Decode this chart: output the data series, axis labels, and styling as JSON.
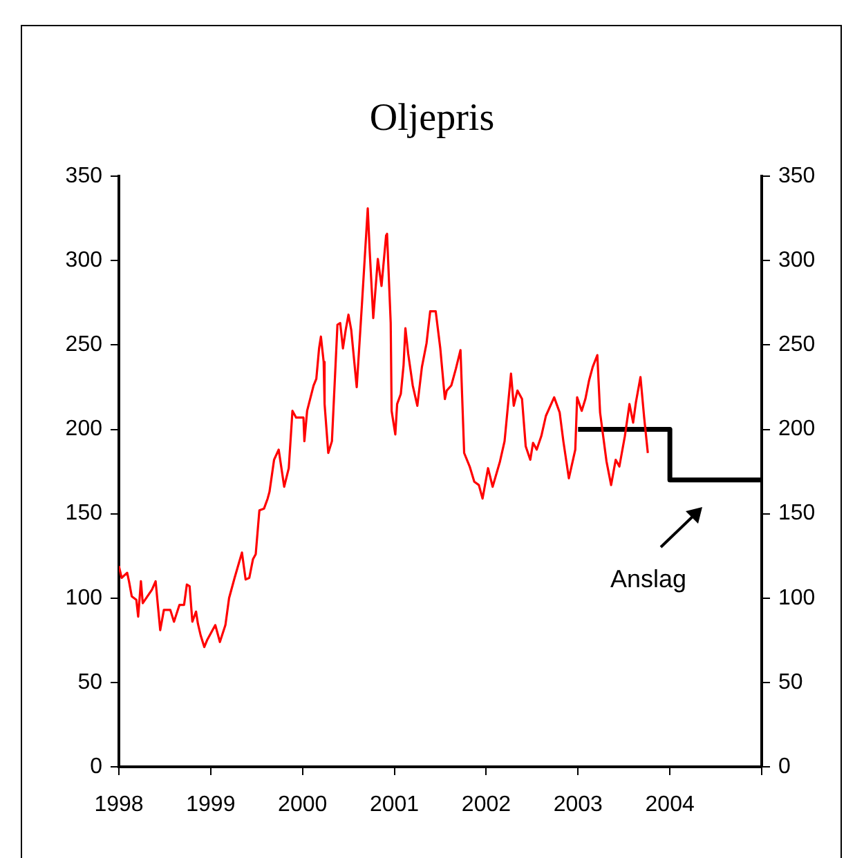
{
  "chart_data": {
    "type": "line",
    "title": "Oljepris",
    "xlim": [
      1998,
      2005
    ],
    "xticks": [
      {
        "value": 1998,
        "label": "1998"
      },
      {
        "value": 1999,
        "label": "1999"
      },
      {
        "value": 2000,
        "label": "2000"
      },
      {
        "value": 2001,
        "label": "2001"
      },
      {
        "value": 2002,
        "label": "2002"
      },
      {
        "value": 2003,
        "label": "2003"
      },
      {
        "value": 2004,
        "label": "2004"
      },
      {
        "value": 2005,
        "label": null
      }
    ],
    "ylim": [
      0,
      350
    ],
    "yticks": [
      0,
      50,
      100,
      150,
      200,
      250,
      300,
      350
    ],
    "y2lim": [
      0,
      350
    ],
    "y2ticks": [
      0,
      50,
      100,
      150,
      200,
      250,
      300,
      350
    ],
    "grid": false,
    "legend": false,
    "marker": "none",
    "line_style": "solid",
    "annotations": [
      "Anslag"
    ],
    "series": [
      {
        "color": "#ff0000",
        "x": [
          1998.0,
          1998.03,
          1998.09,
          1998.11,
          1998.14,
          1998.19,
          1998.21,
          1998.24,
          1998.26,
          1998.36,
          1998.4,
          1998.45,
          1998.49,
          1998.56,
          1998.6,
          1998.66,
          1998.71,
          1998.74,
          1998.77,
          1998.8,
          1998.84,
          1998.86,
          1998.89,
          1998.93,
          1998.96,
          1999.05,
          1999.1,
          1999.16,
          1999.2,
          1999.26,
          1999.34,
          1999.38,
          1999.42,
          1999.46,
          1999.49,
          1999.53,
          1999.58,
          1999.62,
          1999.64,
          1999.69,
          1999.74,
          1999.8,
          1999.85,
          1999.89,
          1999.93,
          2000.01,
          2000.02,
          2000.05,
          2000.12,
          2000.15,
          2000.18,
          2000.2,
          2000.23,
          2000.24,
          2000.28,
          2000.32,
          2000.38,
          2000.41,
          2000.44,
          2000.47,
          2000.5,
          2000.53,
          2000.59,
          2000.65,
          2000.71,
          2000.73,
          2000.77,
          2000.82,
          2000.86,
          2000.91,
          2000.92,
          2000.96,
          2000.97,
          2001.01,
          2001.03,
          2001.07,
          2001.1,
          2001.12,
          2001.15,
          2001.2,
          2001.25,
          2001.3,
          2001.35,
          2001.39,
          2001.45,
          2001.5,
          2001.55,
          2001.57,
          2001.62,
          2001.67,
          2001.72,
          2001.76,
          2001.82,
          2001.87,
          2001.92,
          2001.96,
          2002.02,
          2002.07,
          2002.15,
          2002.2,
          2002.27,
          2002.3,
          2002.34,
          2002.39,
          2002.43,
          2002.48,
          2002.51,
          2002.55,
          2002.6,
          2002.65,
          2002.74,
          2002.8,
          2002.84,
          2002.9,
          2002.97,
          2002.99,
          2003.04,
          2003.08,
          2003.12,
          2003.16,
          2003.21,
          2003.24,
          2003.31,
          2003.36,
          2003.41,
          2003.45,
          2003.51,
          2003.56,
          2003.6,
          2003.63,
          2003.68,
          2003.72,
          2003.76
        ],
        "values": [
          119,
          112,
          115,
          110,
          101,
          99,
          89,
          110,
          97,
          105,
          110,
          81,
          93,
          93,
          86,
          96,
          96,
          108,
          107,
          86,
          92,
          85,
          78,
          71,
          75,
          84,
          74,
          84,
          100,
          112,
          127,
          111,
          112,
          123,
          126,
          152,
          153,
          159,
          163,
          182,
          188,
          166,
          177,
          211,
          207,
          207,
          193,
          211,
          226,
          230,
          248,
          255,
          240,
          215,
          186,
          193,
          262,
          263,
          248,
          259,
          268,
          259,
          225,
          277,
          331,
          307,
          266,
          301,
          285,
          315,
          316,
          263,
          211,
          197,
          215,
          221,
          238,
          260,
          245,
          226,
          214,
          237,
          251,
          270,
          270,
          248,
          218,
          223,
          226,
          236,
          247,
          186,
          178,
          169,
          167,
          159,
          177,
          166,
          181,
          193,
          233,
          214,
          223,
          218,
          190,
          182,
          192,
          188,
          196,
          208,
          219,
          210,
          193,
          171,
          188,
          219,
          211,
          218,
          229,
          237,
          244,
          210,
          181,
          167,
          182,
          178,
          196,
          215,
          204,
          216,
          231,
          207,
          186
        ]
      },
      {
        "type": "step",
        "color": "#000000",
        "x": [
          2003,
          2004,
          2005
        ],
        "values": [
          200,
          170,
          170
        ]
      }
    ]
  }
}
